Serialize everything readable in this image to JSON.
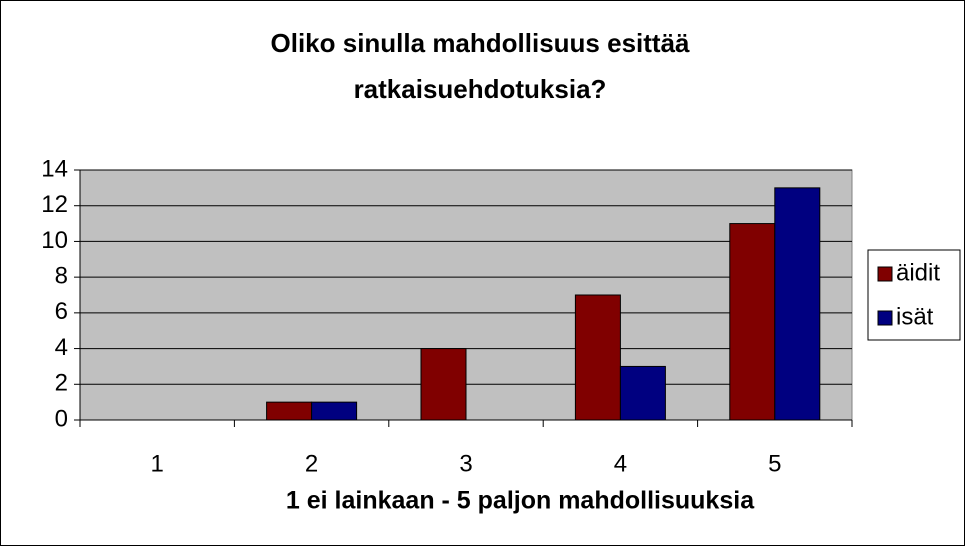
{
  "chart_data": {
    "type": "bar",
    "title": "Oliko sinulla mahdollisuus esittää ratkaisuehdotuksia?",
    "x_label": "1 ei lainkaan - 5 paljon mahdollisuuksia",
    "categories": [
      "1",
      "2",
      "3",
      "4",
      "5"
    ],
    "series": [
      {
        "name": "äidit",
        "color": "#800000",
        "values": [
          0,
          1,
          4,
          7,
          11
        ]
      },
      {
        "name": "isät",
        "color": "#000080",
        "values": [
          0,
          1,
          0,
          3,
          13
        ]
      }
    ],
    "ylim": [
      0,
      14
    ],
    "yticks": [
      0,
      2,
      4,
      6,
      8,
      10,
      12,
      14
    ],
    "grid": true,
    "legend": "right"
  }
}
